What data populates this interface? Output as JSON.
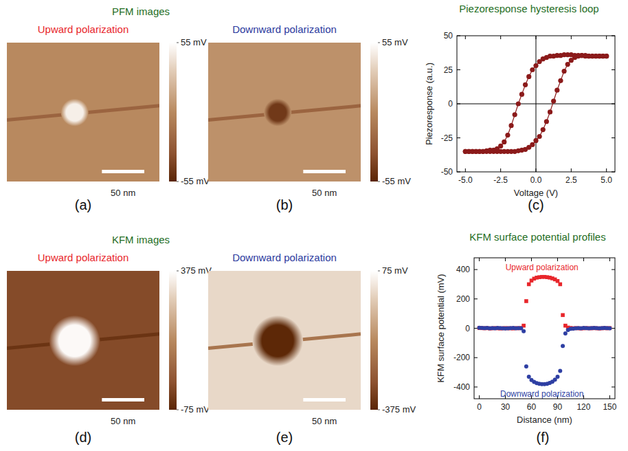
{
  "section_titles": [
    "PFM images",
    "KFM images"
  ],
  "chart_data": [
    {
      "type": "image",
      "label": "(a)",
      "title": "Upward polarization",
      "xlim": [
        0,
        180
      ],
      "ylim": [
        0,
        165
      ],
      "tick_labels": false,
      "background": 0,
      "spot": {
        "x": 80,
        "y": 82,
        "diameter": 25,
        "value": 48
      },
      "boundary": {
        "y": [
          73,
          90
        ],
        "value": -22
      },
      "colorbar": {
        "range": [
          -55,
          55
        ],
        "ticks": [
          {
            "value": 55,
            "label": "55 mV"
          },
          {
            "value": -55,
            "label": "-55 mV"
          }
        ]
      },
      "scale_bar": {
        "value": 50,
        "label": "50 nm"
      }
    },
    {
      "type": "image",
      "label": "(b)",
      "title": "Downward polarization",
      "xlim": [
        0,
        180
      ],
      "ylim": [
        0,
        165
      ],
      "tick_labels": false,
      "background": 4,
      "spot": {
        "x": 82,
        "y": 82,
        "diameter": 25,
        "value": -45
      },
      "boundary": {
        "y": [
          73,
          90
        ],
        "value": -22
      },
      "colorbar": {
        "range": [
          -55,
          55
        ],
        "ticks": [
          {
            "value": 55,
            "label": "55 mV"
          },
          {
            "value": -55,
            "label": "-55 mV"
          }
        ]
      },
      "scale_bar": {
        "value": 50,
        "label": "50 nm"
      }
    },
    {
      "type": "line",
      "label": "(c)",
      "title": "Piezoresponse hysteresis loop",
      "x_label": "Voltage (V)",
      "y_label": "Piezoresponse (a.u.)",
      "color": "#8b1a1a",
      "marker": "circle",
      "xlim": [
        -5.6,
        5.6
      ],
      "ylim": [
        -50,
        50
      ],
      "xticks": [
        {
          "value": -5,
          "label": "-5.0"
        },
        {
          "value": -2.5,
          "label": "-2.5"
        },
        {
          "value": 0,
          "label": "0.0"
        },
        {
          "value": 2.5,
          "label": "2.5"
        },
        {
          "value": 5,
          "label": "5.0"
        }
      ],
      "yticks": [
        -50,
        -25,
        0,
        25,
        50
      ],
      "x": [
        -5,
        -4.75,
        -4.5,
        -4.25,
        -4,
        -3.75,
        -3.5,
        -3.25,
        -3,
        -2.75,
        -2.5,
        -2.25,
        -2,
        -1.75,
        -1.5,
        -1.25,
        -1,
        -0.75,
        -0.5,
        -0.25,
        0,
        0.25,
        0.5,
        0.75,
        1,
        1.25,
        1.5,
        1.75,
        2,
        2.25,
        2.5,
        2.75,
        3,
        3.25,
        3.5,
        3.75,
        4,
        4.25,
        4.5,
        4.75,
        5
      ],
      "series": [
        {
          "values": [
            -35,
            -35,
            -35,
            -35,
            -35,
            -35,
            -34.5,
            -34,
            -34,
            -33,
            -31,
            -28,
            -23,
            -16,
            -8,
            0,
            7,
            14,
            20,
            25,
            28,
            31,
            33,
            34,
            35,
            35,
            35.5,
            35.5,
            36,
            36,
            36,
            35.5,
            35.5,
            35.5,
            35,
            35,
            35,
            35,
            35,
            35,
            35
          ]
        },
        {
          "values": [
            -35,
            -35,
            -35,
            -35,
            -35,
            -35,
            -35,
            -35,
            -35,
            -35,
            -35,
            -35,
            -35,
            -35,
            -35,
            -34.5,
            -34,
            -33.5,
            -32,
            -30,
            -27,
            -24,
            -19,
            -13,
            -6,
            2,
            10,
            17,
            24,
            29,
            32,
            34,
            35,
            35.5,
            35.5,
            35,
            35,
            35,
            35,
            35,
            35
          ]
        }
      ]
    },
    {
      "type": "image",
      "label": "(d)",
      "title": "Upward polarization",
      "xlim": [
        0,
        180
      ],
      "ylim": [
        0,
        165
      ],
      "tick_labels": false,
      "background": 0,
      "spot": {
        "x": 80,
        "y": 82,
        "diameter": 46,
        "value": 365
      },
      "boundary": {
        "y": [
          73,
          90
        ],
        "value": -45
      },
      "colorbar": {
        "range": [
          -75,
          375
        ],
        "ticks": [
          {
            "value": 375,
            "label": "375 mV"
          },
          {
            "value": -75,
            "label": "-75 mV"
          }
        ]
      },
      "scale_bar": {
        "value": 50,
        "label": "50 nm"
      }
    },
    {
      "type": "image",
      "label": "(e)",
      "title": "Downward polarization",
      "xlim": [
        0,
        180
      ],
      "ylim": [
        0,
        165
      ],
      "tick_labels": false,
      "background": 5,
      "spot": {
        "x": 82,
        "y": 82,
        "diameter": 46,
        "value": -370
      },
      "boundary": {
        "y": [
          73,
          90
        ],
        "value": -200
      },
      "colorbar": {
        "range": [
          -375,
          75
        ],
        "ticks": [
          {
            "value": 75,
            "label": "75 mV"
          },
          {
            "value": -375,
            "label": "-375 mV"
          }
        ]
      },
      "scale_bar": {
        "value": 50,
        "label": "50 nm"
      }
    },
    {
      "type": "scatter",
      "label": "(f)",
      "title": "KFM surface potential profiles",
      "x_label": "Distance (nm)",
      "y_label": "KFM surface potential (mV)",
      "xlim": [
        -6,
        156
      ],
      "ylim": [
        -480,
        480
      ],
      "xticks": [
        0,
        30,
        60,
        90,
        120,
        150
      ],
      "yticks": [
        -400,
        -200,
        0,
        200,
        400
      ],
      "x": [
        0,
        3,
        6,
        9,
        12,
        15,
        18,
        21,
        24,
        27,
        30,
        33,
        36,
        39,
        42,
        45,
        48,
        51,
        54,
        57,
        60,
        63,
        66,
        69,
        72,
        75,
        78,
        81,
        84,
        87,
        90,
        93,
        96,
        99,
        102,
        105,
        108,
        111,
        114,
        117,
        120,
        123,
        126,
        129,
        132,
        135,
        138,
        141,
        144,
        147,
        150
      ],
      "series": [
        {
          "name": "Upward polarization",
          "color": "#e8262b",
          "marker": "square",
          "values": [
            2,
            1,
            0,
            1,
            -1,
            0,
            1,
            0,
            -1,
            0,
            1,
            0,
            0,
            -1,
            1,
            0,
            2,
            18,
            185,
            300,
            325,
            338,
            345,
            348,
            350,
            350,
            348,
            345,
            340,
            333,
            322,
            300,
            90,
            18,
            5,
            2,
            0,
            1,
            0,
            -1,
            0,
            1,
            0,
            0,
            1,
            0,
            -1,
            0,
            1,
            0,
            1
          ]
        },
        {
          "name": "Downward polarization",
          "color": "#2e3fa3",
          "marker": "circle",
          "values": [
            3,
            2,
            1,
            2,
            0,
            1,
            0,
            2,
            1,
            0,
            -1,
            0,
            1,
            2,
            0,
            1,
            0,
            -20,
            -260,
            -330,
            -352,
            -365,
            -373,
            -378,
            -380,
            -380,
            -378,
            -372,
            -364,
            -350,
            -330,
            -290,
            -120,
            -35,
            -12,
            -4,
            -2,
            0,
            1,
            0,
            2,
            1,
            0,
            1,
            2,
            1,
            0,
            1,
            2,
            1,
            0
          ]
        }
      ]
    }
  ]
}
